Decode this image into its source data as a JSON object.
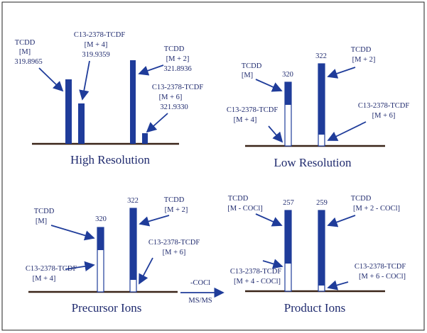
{
  "panels": [
    {
      "title": "High Resolution",
      "labels": [
        "TCDD",
        "[M]",
        "319.8965",
        "C13-2378-TCDF",
        "[M + 4]",
        "319.9359",
        "TCDD",
        "[M + 2]",
        "321.8936",
        "C13-2378-TCDF",
        "[M + 6]",
        "321.9330"
      ]
    },
    {
      "title": "Low Resolution",
      "labels": [
        "320",
        "322",
        "TCDD",
        "[M]",
        "TCDD",
        "[M + 2]",
        "C13-2378-TCDF",
        "[M + 4]",
        "C13-2378-TCDF",
        "[M + 6]"
      ]
    },
    {
      "title": "Precursor Ions",
      "labels": [
        "320",
        "322",
        "TCDD",
        "[M]",
        "TCDD",
        "[M + 2]",
        "C13-2378-TCDF",
        "[M + 4]",
        "C13-2378-TCDF",
        "[M + 6]"
      ]
    },
    {
      "title": "Product Ions",
      "labels": [
        "257",
        "259",
        "TCDD",
        "[M - COCl]",
        "TCDD",
        "[M + 2 - COCl]",
        "C13-2378-TCDF",
        "[M + 4 - COCl]",
        "C13-2378-TCDF",
        "[M + 6 - COCl]"
      ]
    }
  ],
  "transition": {
    "top": "-COCl",
    "bottom": "MS/MS"
  }
}
